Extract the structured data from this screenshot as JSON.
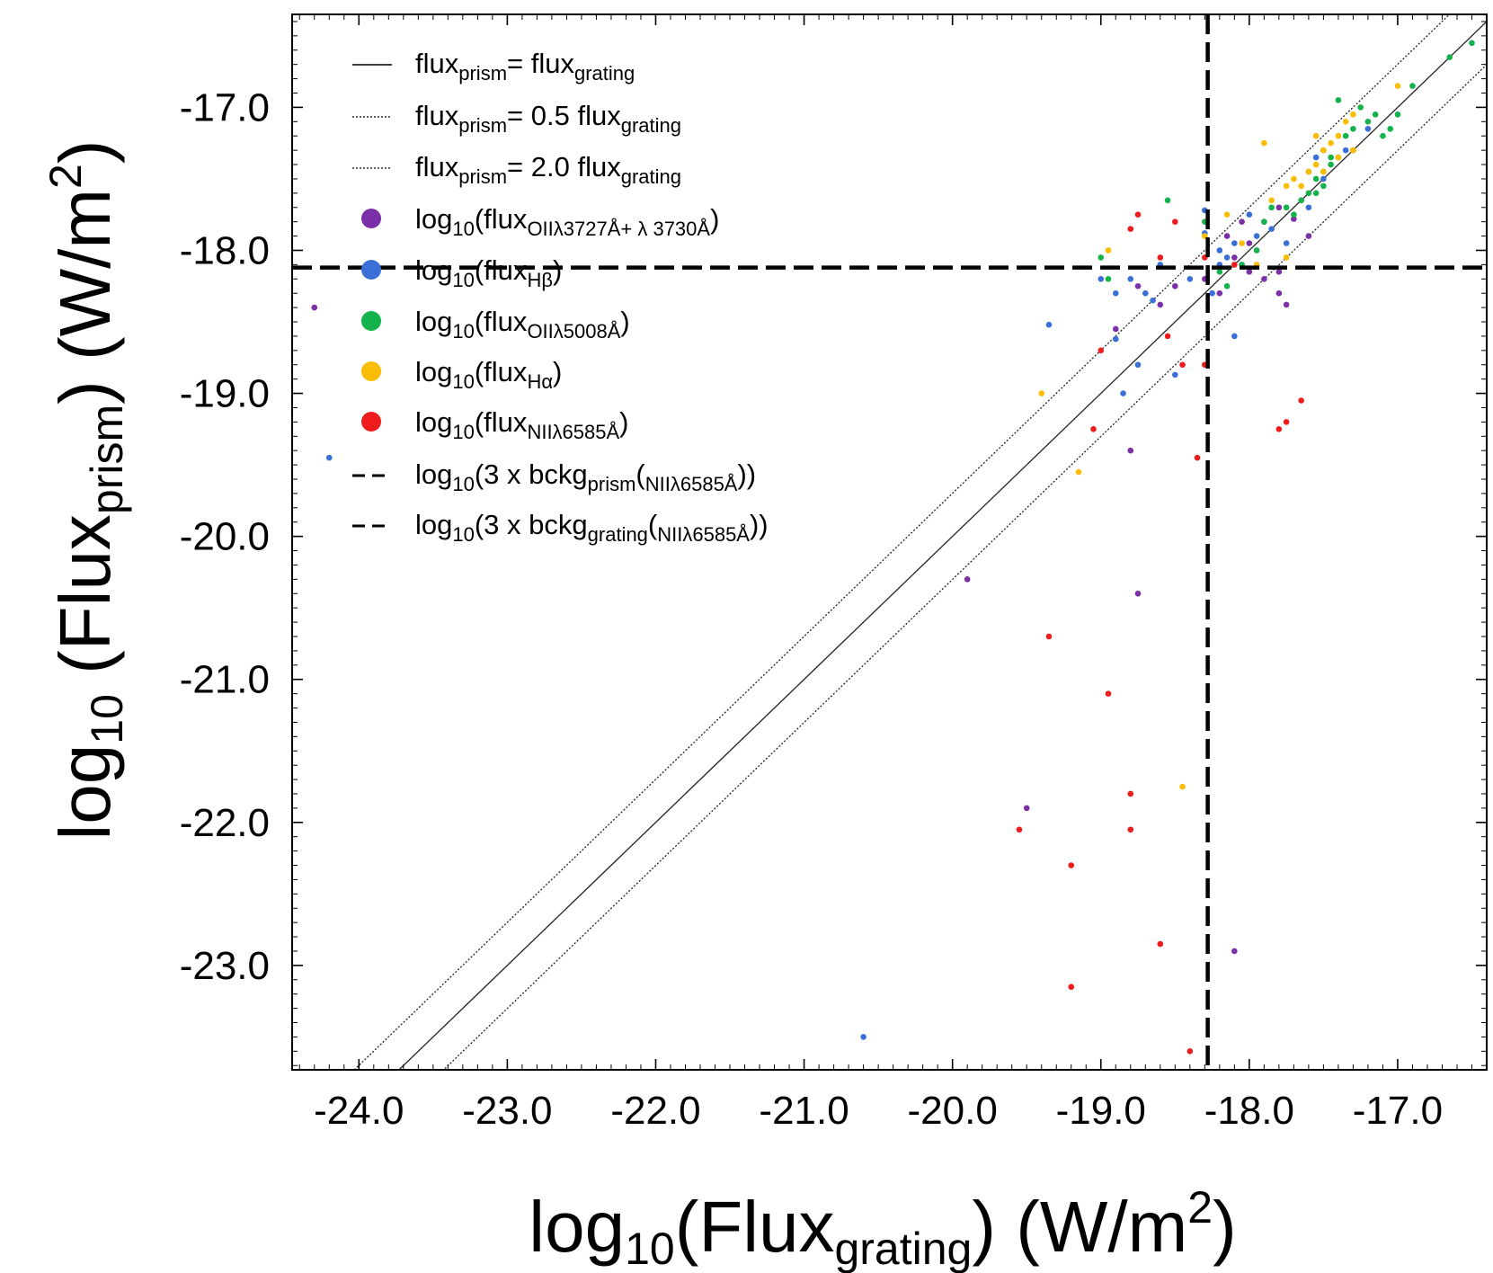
{
  "chart_data": {
    "type": "scatter",
    "xlabel": {
      "pre": "log",
      "sub1": "10",
      "mid": "(Flux",
      "sub2": "grating",
      "post": ") (W/m",
      "sup": "2",
      "end": ")"
    },
    "ylabel": {
      "pre": "log",
      "sub1": "10",
      "mid": " (Flux",
      "sub2": "prism",
      "post": ") (W/m",
      "sup": "2",
      "end": ")"
    },
    "xlim": [
      -24.45,
      -16.4
    ],
    "ylim": [
      -23.73,
      -16.35
    ],
    "x_ticks": [
      -24.0,
      -23.0,
      -22.0,
      -21.0,
      -20.0,
      -19.0,
      -18.0,
      -17.0
    ],
    "x_tick_labels": [
      "-24.0",
      "-23.0",
      "-22.0",
      "-21.0",
      "-20.0",
      "-19.0",
      "-18.0",
      "-17.0"
    ],
    "y_ticks": [
      -23.0,
      -22.0,
      -21.0,
      -20.0,
      -19.0,
      -18.0,
      -17.0
    ],
    "y_tick_labels": [
      "-23.0",
      "-22.0",
      "-21.0",
      "-20.0",
      "-19.0",
      "-18.0",
      "-17.0"
    ],
    "grid": false,
    "legend_position": "top-left",
    "reference_lines": {
      "identity": {
        "factor": 1.0
      },
      "half": {
        "factor": 0.5
      },
      "double": {
        "factor": 2.0
      },
      "bckg_prism_y": -18.12,
      "bckg_grating_x": -18.28
    },
    "legend": [
      {
        "kind": "solid",
        "t": [
          [
            "flux",
            ""
          ],
          [
            "prism",
            "sub"
          ],
          [
            "= flux",
            ""
          ],
          [
            "grating",
            "sub"
          ]
        ]
      },
      {
        "kind": "dotted",
        "t": [
          [
            "flux",
            ""
          ],
          [
            "prism",
            "sub"
          ],
          [
            "= 0.5 flux",
            ""
          ],
          [
            "grating",
            "sub"
          ]
        ]
      },
      {
        "kind": "dotted",
        "t": [
          [
            "flux",
            ""
          ],
          [
            "prism",
            "sub"
          ],
          [
            "= 2.0 flux",
            ""
          ],
          [
            "grating",
            "sub"
          ]
        ]
      },
      {
        "kind": "marker",
        "color": "#7b2fa8",
        "t": [
          [
            "log",
            ""
          ],
          [
            "10",
            "sub"
          ],
          [
            "(flux",
            ""
          ],
          [
            "OIIλ3727Å+ λ 3730Å",
            "sub"
          ],
          [
            ")",
            ""
          ]
        ]
      },
      {
        "kind": "marker",
        "color": "#3b6fd8",
        "t": [
          [
            "log",
            ""
          ],
          [
            "10",
            "sub"
          ],
          [
            "(flux",
            ""
          ],
          [
            "Hβ",
            "sub"
          ],
          [
            ")",
            ""
          ]
        ]
      },
      {
        "kind": "marker",
        "color": "#13b24a",
        "t": [
          [
            "log",
            ""
          ],
          [
            "10",
            "sub"
          ],
          [
            "(flux",
            ""
          ],
          [
            "OIIλ5008Å",
            "sub"
          ],
          [
            ")",
            ""
          ]
        ]
      },
      {
        "kind": "marker",
        "color": "#fbbc05",
        "t": [
          [
            "log",
            ""
          ],
          [
            "10",
            "sub"
          ],
          [
            "(flux",
            ""
          ],
          [
            "Hα",
            "sub"
          ],
          [
            ")",
            ""
          ]
        ]
      },
      {
        "kind": "marker",
        "color": "#ee1c1c",
        "t": [
          [
            "log",
            ""
          ],
          [
            "10",
            "sub"
          ],
          [
            "(flux",
            ""
          ],
          [
            "NIIλ6585Å",
            "sub"
          ],
          [
            ")",
            ""
          ]
        ]
      },
      {
        "kind": "dashed",
        "t": [
          [
            "log",
            ""
          ],
          [
            "10",
            "sub"
          ],
          [
            "(3 x bckg",
            ""
          ],
          [
            "prism",
            "sub"
          ],
          [
            "(",
            ""
          ],
          [
            "NIIλ6585Å",
            "sub"
          ],
          [
            "))",
            ""
          ]
        ]
      },
      {
        "kind": "dashed",
        "t": [
          [
            "log",
            ""
          ],
          [
            "10",
            "sub"
          ],
          [
            "(3 x bckg",
            ""
          ],
          [
            "grating",
            "sub"
          ],
          [
            "(",
            ""
          ],
          [
            "NIIλ6585Å",
            "sub"
          ],
          [
            "))",
            ""
          ]
        ]
      }
    ],
    "series": [
      {
        "color": "#7b2fa8",
        "points": [
          [
            -24.3,
            -18.4
          ],
          [
            -19.9,
            -20.3
          ],
          [
            -19.5,
            -21.9
          ],
          [
            -18.9,
            -18.55
          ],
          [
            -18.8,
            -19.4
          ],
          [
            -18.75,
            -20.4
          ],
          [
            -18.5,
            -18.25
          ],
          [
            -18.6,
            -18.38
          ],
          [
            -18.75,
            -18.25
          ],
          [
            -18.1,
            -22.9
          ],
          [
            -18.0,
            -18.15
          ],
          [
            -17.9,
            -18.2
          ],
          [
            -17.8,
            -18.3
          ],
          [
            -17.75,
            -18.38
          ],
          [
            -17.8,
            -18.15
          ],
          [
            -17.9,
            -17.8
          ],
          [
            -17.7,
            -17.78
          ],
          [
            -17.6,
            -17.9
          ],
          [
            -17.65,
            -17.65
          ],
          [
            -17.8,
            -17.7
          ],
          [
            -18.2,
            -18.3
          ],
          [
            -18.3,
            -18.2
          ],
          [
            -18.1,
            -18.05
          ],
          [
            -18.15,
            -17.9
          ],
          [
            -18.0,
            -17.95
          ],
          [
            -18.05,
            -17.8
          ]
        ]
      },
      {
        "color": "#3b6fd8",
        "points": [
          [
            -24.2,
            -19.45
          ],
          [
            -20.6,
            -23.5
          ],
          [
            -19.35,
            -18.52
          ],
          [
            -18.9,
            -18.62
          ],
          [
            -18.85,
            -19.0
          ],
          [
            -18.75,
            -18.8
          ],
          [
            -18.5,
            -18.87
          ],
          [
            -18.4,
            -18.2
          ],
          [
            -18.3,
            -17.72
          ],
          [
            -18.9,
            -18.3
          ],
          [
            -19.0,
            -18.2
          ],
          [
            -18.6,
            -18.1
          ],
          [
            -18.65,
            -18.35
          ],
          [
            -18.7,
            -18.3
          ],
          [
            -18.8,
            -18.2
          ],
          [
            -18.1,
            -18.6
          ],
          [
            -18.2,
            -18.0
          ],
          [
            -18.1,
            -17.95
          ],
          [
            -18.05,
            -18.1
          ],
          [
            -17.95,
            -17.9
          ],
          [
            -17.85,
            -17.85
          ],
          [
            -17.75,
            -17.95
          ],
          [
            -17.6,
            -17.7
          ],
          [
            -17.5,
            -17.5
          ],
          [
            -17.35,
            -17.3
          ],
          [
            -17.2,
            -17.15
          ],
          [
            -17.55,
            -17.35
          ],
          [
            -18.25,
            -18.3
          ],
          [
            -18.3,
            -17.88
          ],
          [
            -18.2,
            -18.1
          ],
          [
            -18.0,
            -17.75
          ],
          [
            -18.15,
            -18.05
          ]
        ]
      },
      {
        "color": "#13b24a",
        "points": [
          [
            -19.0,
            -18.05
          ],
          [
            -18.95,
            -18.2
          ],
          [
            -18.55,
            -17.65
          ],
          [
            -18.3,
            -17.8
          ],
          [
            -18.2,
            -18.15
          ],
          [
            -18.15,
            -18.25
          ],
          [
            -18.05,
            -18.1
          ],
          [
            -17.95,
            -18.0
          ],
          [
            -17.9,
            -17.8
          ],
          [
            -17.85,
            -17.7
          ],
          [
            -17.7,
            -17.75
          ],
          [
            -17.6,
            -17.6
          ],
          [
            -17.55,
            -17.5
          ],
          [
            -17.5,
            -17.45
          ],
          [
            -17.45,
            -17.4
          ],
          [
            -17.4,
            -17.35
          ],
          [
            -17.35,
            -17.2
          ],
          [
            -17.3,
            -17.15
          ],
          [
            -17.25,
            -17.0
          ],
          [
            -17.2,
            -17.1
          ],
          [
            -17.15,
            -17.05
          ],
          [
            -17.1,
            -17.2
          ],
          [
            -17.05,
            -17.15
          ],
          [
            -17.0,
            -17.05
          ],
          [
            -16.9,
            -16.85
          ],
          [
            -16.65,
            -16.65
          ],
          [
            -16.5,
            -16.55
          ],
          [
            -17.6,
            -17.45
          ],
          [
            -17.5,
            -17.55
          ],
          [
            -17.4,
            -16.95
          ],
          [
            -17.3,
            -17.3
          ],
          [
            -17.45,
            -17.35
          ],
          [
            -17.5,
            -17.3
          ],
          [
            -17.55,
            -17.6
          ],
          [
            -17.65,
            -17.65
          ],
          [
            -17.75,
            -17.7
          ]
        ]
      },
      {
        "color": "#fbbc05",
        "points": [
          [
            -19.4,
            -19.0
          ],
          [
            -19.15,
            -19.55
          ],
          [
            -18.95,
            -18.0
          ],
          [
            -18.45,
            -21.75
          ],
          [
            -18.3,
            -17.9
          ],
          [
            -18.15,
            -17.75
          ],
          [
            -17.9,
            -17.25
          ],
          [
            -17.85,
            -17.65
          ],
          [
            -17.75,
            -17.55
          ],
          [
            -17.7,
            -17.5
          ],
          [
            -17.6,
            -17.45
          ],
          [
            -17.55,
            -17.4
          ],
          [
            -17.5,
            -17.3
          ],
          [
            -17.45,
            -17.25
          ],
          [
            -17.4,
            -17.2
          ],
          [
            -17.35,
            -17.1
          ],
          [
            -17.3,
            -17.05
          ],
          [
            -17.0,
            -16.85
          ],
          [
            -17.95,
            -18.1
          ],
          [
            -17.75,
            -18.05
          ],
          [
            -18.05,
            -17.95
          ],
          [
            -17.65,
            -17.55
          ],
          [
            -17.5,
            -17.45
          ],
          [
            -17.4,
            -17.35
          ],
          [
            -17.55,
            -17.2
          ],
          [
            -17.3,
            -17.3
          ]
        ]
      },
      {
        "color": "#ee1c1c",
        "points": [
          [
            -19.55,
            -22.05
          ],
          [
            -19.35,
            -20.7
          ],
          [
            -19.2,
            -22.3
          ],
          [
            -19.2,
            -23.15
          ],
          [
            -19.05,
            -19.25
          ],
          [
            -19.0,
            -18.7
          ],
          [
            -18.95,
            -21.1
          ],
          [
            -18.8,
            -21.8
          ],
          [
            -18.8,
            -22.05
          ],
          [
            -18.8,
            -17.85
          ],
          [
            -18.75,
            -17.75
          ],
          [
            -18.6,
            -22.85
          ],
          [
            -18.6,
            -18.05
          ],
          [
            -18.55,
            -18.6
          ],
          [
            -18.45,
            -18.8
          ],
          [
            -18.4,
            -23.6
          ],
          [
            -18.35,
            -19.45
          ],
          [
            -18.3,
            -18.8
          ],
          [
            -18.1,
            -18.1
          ],
          [
            -17.8,
            -19.25
          ],
          [
            -17.75,
            -19.2
          ],
          [
            -17.65,
            -19.05
          ],
          [
            -18.3,
            -18.05
          ],
          [
            -18.5,
            -17.8
          ]
        ]
      }
    ]
  }
}
